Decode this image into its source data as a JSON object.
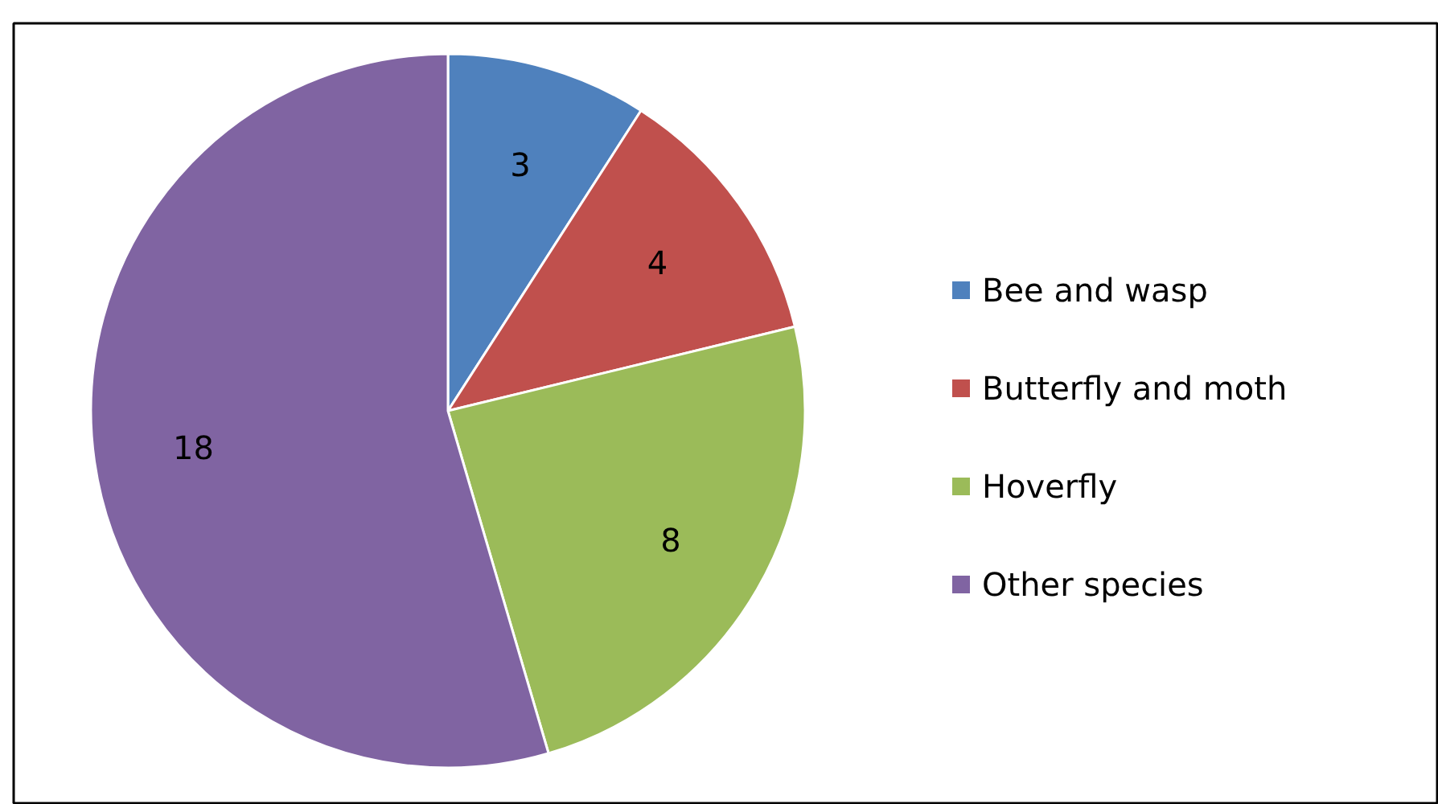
{
  "chart_data": {
    "type": "pie",
    "categories": [
      "Bee and wasp",
      "Butterfly and moth",
      "Hoverfly",
      "Other species"
    ],
    "values": [
      3,
      4,
      8,
      18
    ],
    "colors": [
      "#4f81bd",
      "#c0504d",
      "#9bbb59",
      "#8064a2"
    ],
    "data_labels": true,
    "legend": "right"
  }
}
